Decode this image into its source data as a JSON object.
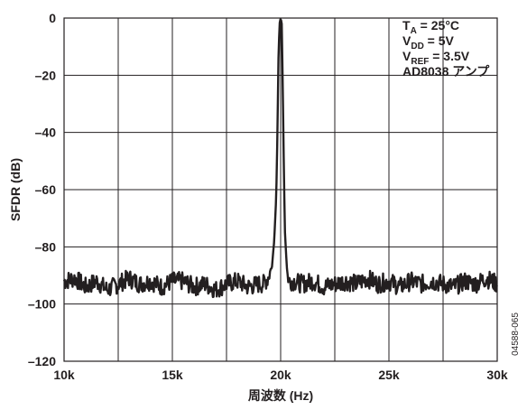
{
  "chart_data": {
    "type": "line",
    "title": "",
    "xlabel": "周波数 (Hz)",
    "ylabel": "SFDR (dB)",
    "xlim": [
      10000,
      30000
    ],
    "ylim": [
      -120,
      0
    ],
    "x_ticks": [
      10000,
      15000,
      20000,
      25000,
      30000
    ],
    "x_tick_labels": [
      "10k",
      "15k",
      "20k",
      "25k",
      "30k"
    ],
    "y_ticks": [
      0,
      -20,
      -40,
      -60,
      -80,
      -100,
      -120
    ],
    "y_tick_labels": [
      "0",
      "–20",
      "–40",
      "–60",
      "–80",
      "–100",
      "–120"
    ],
    "grid": true,
    "series": [
      {
        "color": "#231f20",
        "x": [
          10000,
          10500,
          11000,
          11500,
          12000,
          12500,
          13000,
          13500,
          14000,
          14500,
          15000,
          15500,
          16000,
          16500,
          17000,
          17500,
          18000,
          18500,
          19000,
          19200,
          19400,
          19600,
          19700,
          19800,
          19850,
          19900,
          19950,
          20000,
          20050,
          20100,
          20150,
          20200,
          20300,
          20400,
          20600,
          21000,
          21500,
          22000,
          22500,
          23000,
          23500,
          24000,
          24500,
          25000,
          25500,
          26000,
          26500,
          27000,
          27500,
          28000,
          28500,
          29000,
          29500,
          30000
        ],
        "y": [
          -92,
          -91,
          -94,
          -92,
          -95,
          -93,
          -91,
          -93,
          -92,
          -94,
          -92,
          -92,
          -94,
          -93,
          -95,
          -93,
          -92,
          -94,
          -93,
          -93,
          -91,
          -87,
          -78,
          -62,
          -40,
          -14,
          -2,
          0,
          -2,
          -24,
          -55,
          -75,
          -89,
          -92,
          -92,
          -93,
          -92,
          -94,
          -93,
          -92,
          -93,
          -91,
          -93,
          -92,
          -94,
          -92,
          -93,
          -92,
          -93,
          -94,
          -92,
          -93,
          -91,
          -93
        ]
      }
    ],
    "annotations": [
      {
        "main": "T",
        "sub": "A",
        "rest": " = 25°C"
      },
      {
        "main": "V",
        "sub": "DD",
        "rest": " = 5V"
      },
      {
        "main": "V",
        "sub": "REF",
        "rest": " = 3.5V"
      },
      {
        "main": "AD8038 アンプ",
        "sub": "",
        "rest": ""
      }
    ],
    "figure_code": "04588-065"
  }
}
